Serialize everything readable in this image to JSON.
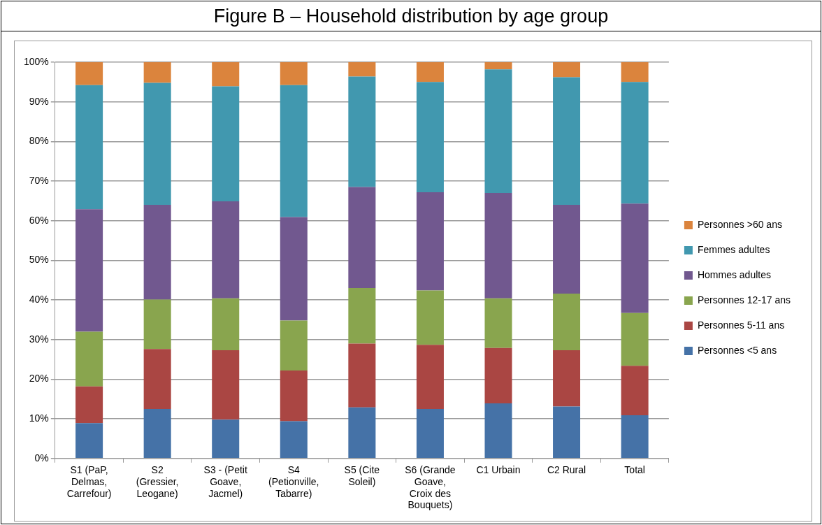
{
  "chart_data": {
    "type": "bar",
    "stacked": true,
    "title": "Figure B – Household distribution by age group",
    "categories": [
      "S1 (PaP, Delmas, Carrefour)",
      "S2 (Gressier, Leogane)",
      "S3 - (Petit Goave, Jacmel)",
      "S4 (Petionville, Tabarre)",
      "S5  (Cite Soleil)",
      "S6 (Grande Goave, Croix des Bouquets)",
      "C1 Urbain",
      "C2 Rural",
      "Total"
    ],
    "series": [
      {
        "name": "Personnes <5 ans",
        "color": "#4572a7",
        "values": [
          8.9,
          12.5,
          9.8,
          9.4,
          12.9,
          12.5,
          13.9,
          13.1,
          10.9
        ]
      },
      {
        "name": "Personnes 5-11 ans",
        "color": "#aa4643",
        "values": [
          9.3,
          15.1,
          17.5,
          12.8,
          16.1,
          16.2,
          14.0,
          14.2,
          12.5
        ]
      },
      {
        "name": "Personnes 12-17 ans",
        "color": "#89a54e",
        "values": [
          13.8,
          12.5,
          13.1,
          12.6,
          14.0,
          13.7,
          12.5,
          14.3,
          13.3
        ]
      },
      {
        "name": "Hommes adultes",
        "color": "#71588f",
        "values": [
          30.9,
          23.9,
          24.5,
          26.1,
          25.5,
          24.8,
          26.6,
          22.4,
          27.6
        ]
      },
      {
        "name": "Femmes adultes",
        "color": "#4198af",
        "values": [
          31.3,
          30.8,
          29.0,
          33.3,
          27.9,
          27.8,
          31.2,
          32.2,
          30.7
        ]
      },
      {
        "name": "Personnes >60 ans",
        "color": "#db843d",
        "values": [
          5.8,
          5.2,
          6.1,
          5.8,
          3.6,
          5.0,
          1.8,
          3.8,
          5.0
        ]
      }
    ],
    "ylim": [
      0,
      100
    ],
    "yticks": [
      {
        "value": 0,
        "label": "0%"
      },
      {
        "value": 10,
        "label": "10%"
      },
      {
        "value": 20,
        "label": "20%"
      },
      {
        "value": 30,
        "label": "30%"
      },
      {
        "value": 40,
        "label": "40%"
      },
      {
        "value": 50,
        "label": "50%"
      },
      {
        "value": 60,
        "label": "60%"
      },
      {
        "value": 70,
        "label": "70%"
      },
      {
        "value": 80,
        "label": "80%"
      },
      {
        "value": 90,
        "label": "90%"
      },
      {
        "value": 100,
        "label": "100%"
      }
    ],
    "grid": "y",
    "legend": "right"
  }
}
